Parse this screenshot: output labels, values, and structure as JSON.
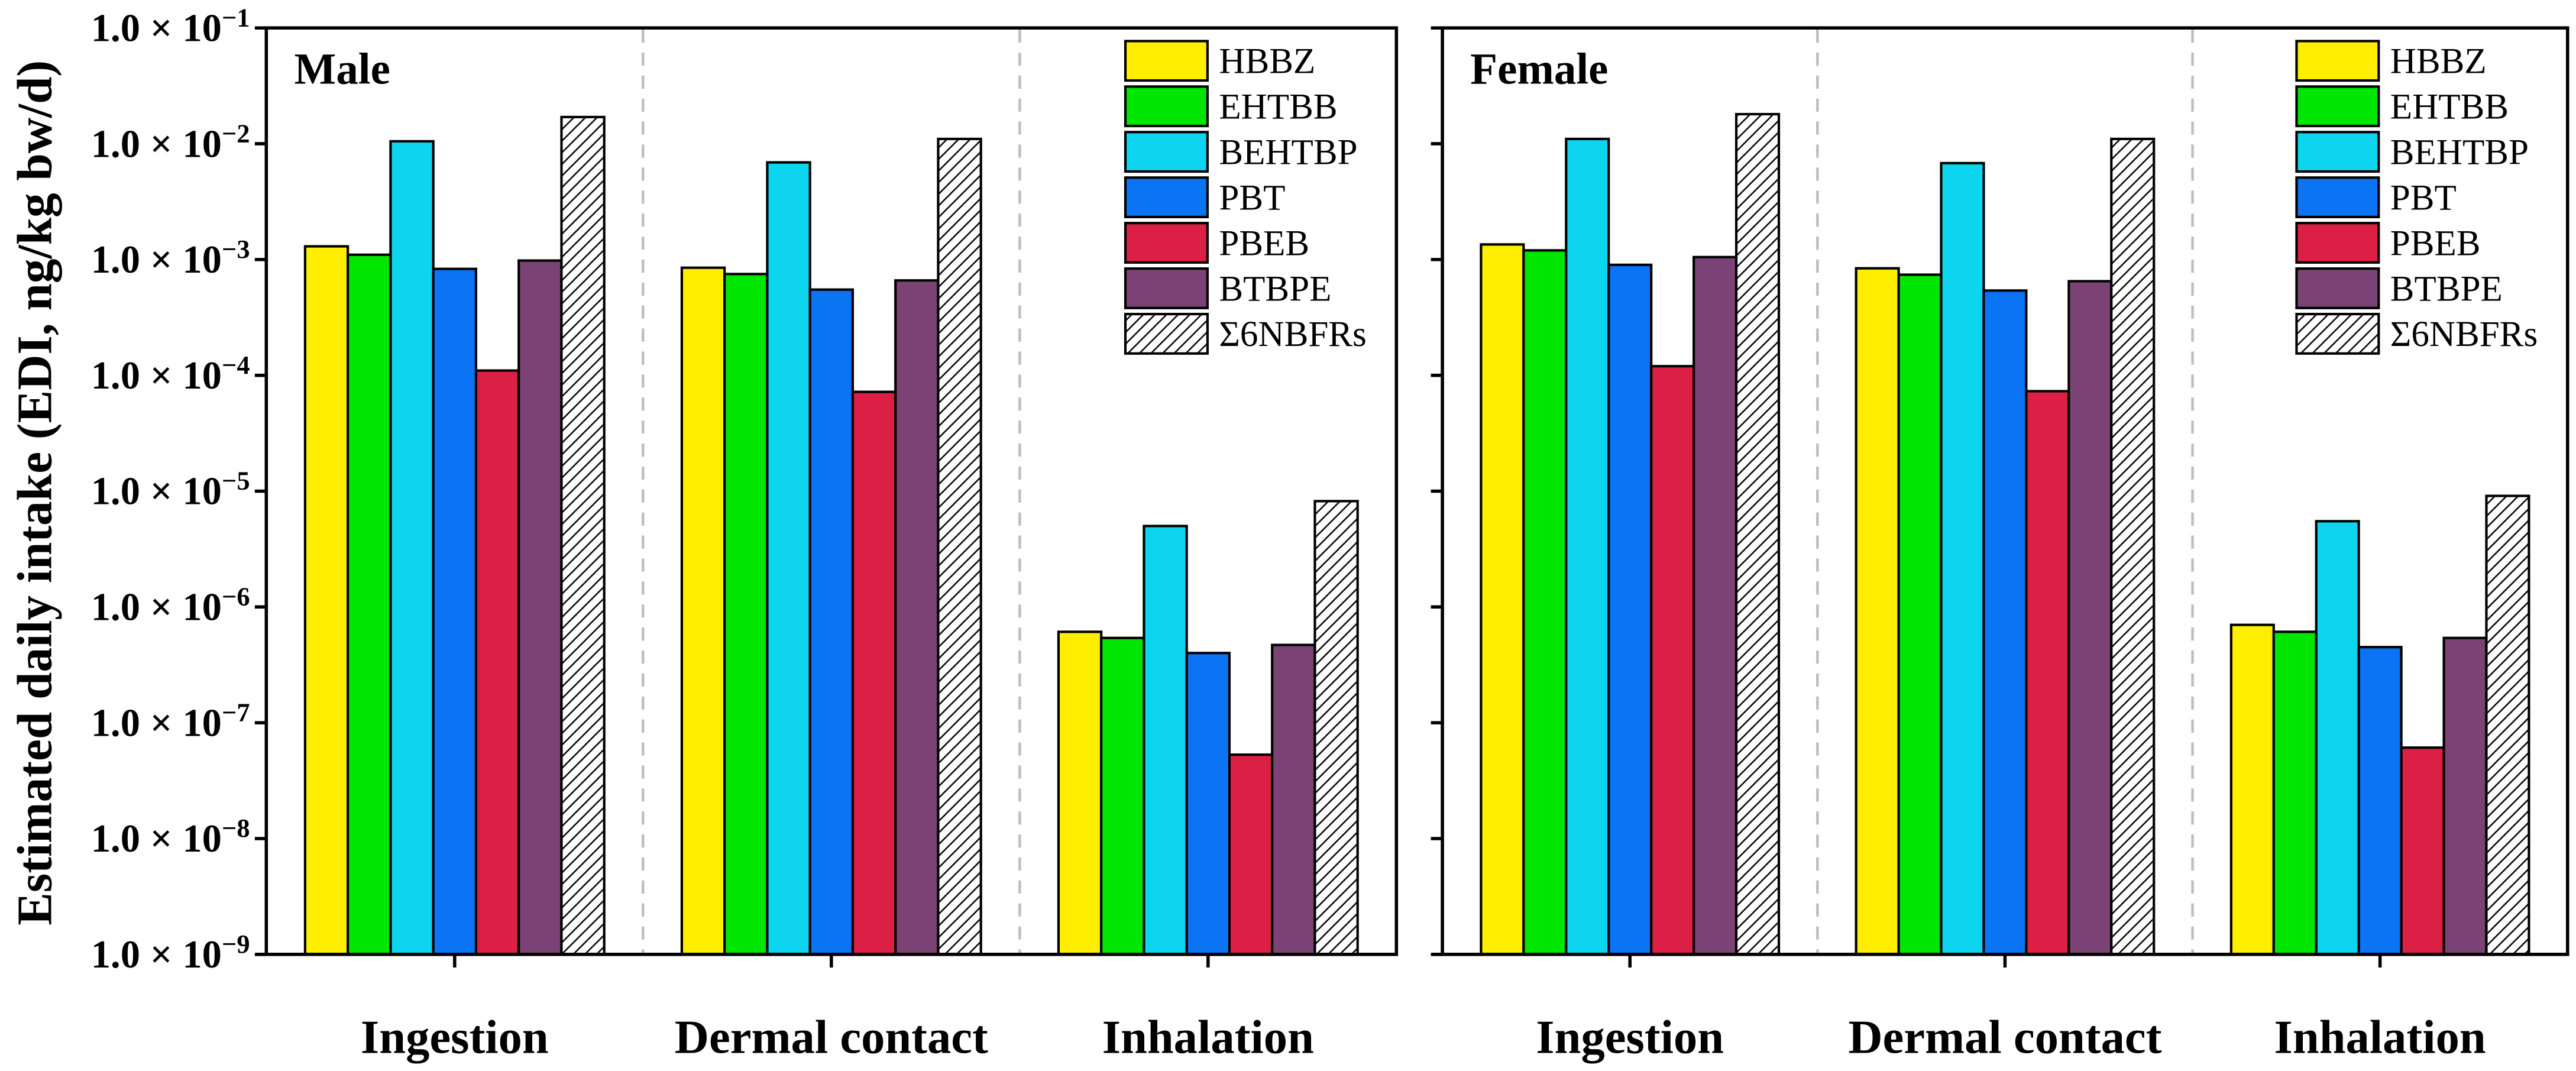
{
  "chart_data": [
    {
      "type": "bar",
      "title": "Male",
      "ylabel": "Estimated daily intake (EDI, ng/kg bw/d)",
      "y_log": true,
      "ylim": [
        1e-09,
        0.1
      ],
      "grid": false,
      "categories": [
        "Ingestion",
        "Dermal contact",
        "Inhalation"
      ],
      "y_ticks": [
        {
          "value": 0.1,
          "base": "1.0 × 10",
          "exp": "−1"
        },
        {
          "value": 0.01,
          "base": "1.0 × 10",
          "exp": "−2"
        },
        {
          "value": 0.001,
          "base": "1.0 × 10",
          "exp": "−3"
        },
        {
          "value": 0.0001,
          "base": "1.0 × 10",
          "exp": "−4"
        },
        {
          "value": 1e-05,
          "base": "1.0 × 10",
          "exp": "−5"
        },
        {
          "value": 1e-06,
          "base": "1.0 × 10",
          "exp": "−6"
        },
        {
          "value": 1e-07,
          "base": "1.0 × 10",
          "exp": "−7"
        },
        {
          "value": 1e-08,
          "base": "1.0 × 10",
          "exp": "−8"
        },
        {
          "value": 1e-09,
          "base": "1.0 × 10",
          "exp": "−9"
        }
      ],
      "series": [
        {
          "name": "HBBZ",
          "color": "#FFEE00",
          "values": [
            0.0013,
            0.00085,
            6.1e-07
          ]
        },
        {
          "name": "EHTBB",
          "color": "#00E600",
          "values": [
            0.0011,
            0.00075,
            5.4e-07
          ]
        },
        {
          "name": "BEHTBP",
          "color": "#0DD5EF",
          "values": [
            0.0105,
            0.0069,
            5e-06
          ]
        },
        {
          "name": "PBT",
          "color": "#0B74F4",
          "values": [
            0.00083,
            0.00055,
            4e-07
          ]
        },
        {
          "name": "PBEB",
          "color": "#DC2045",
          "values": [
            0.00011,
            7.2e-05,
            5.3e-08
          ]
        },
        {
          "name": "BTBPE",
          "color": "#7B4275",
          "values": [
            0.00098,
            0.00066,
            4.7e-07
          ]
        },
        {
          "name": "Σ6NBFRs",
          "color": "#FFFFFF",
          "hatch": true,
          "values": [
            0.017,
            0.011,
            8.2e-06
          ]
        }
      ]
    },
    {
      "type": "bar",
      "title": "Female",
      "y_log": true,
      "ylim": [
        1e-09,
        0.1
      ],
      "grid": false,
      "categories": [
        "Ingestion",
        "Dermal contact",
        "Inhalation"
      ],
      "y_tick_values": [
        0.1,
        0.01,
        0.001,
        0.0001,
        1e-05,
        1e-06,
        1e-07,
        1e-08,
        1e-09
      ],
      "series": [
        {
          "name": "HBBZ",
          "color": "#FFEE00",
          "values": [
            0.00135,
            0.00084,
            7e-07
          ]
        },
        {
          "name": "EHTBB",
          "color": "#00E600",
          "values": [
            0.0012,
            0.00074,
            6.1e-07
          ]
        },
        {
          "name": "BEHTBP",
          "color": "#0DD5EF",
          "values": [
            0.011,
            0.0068,
            5.5e-06
          ]
        },
        {
          "name": "PBT",
          "color": "#0B74F4",
          "values": [
            0.0009,
            0.00054,
            4.5e-07
          ]
        },
        {
          "name": "PBEB",
          "color": "#DC2045",
          "values": [
            0.00012,
            7.3e-05,
            6.1e-08
          ]
        },
        {
          "name": "BTBPE",
          "color": "#7B4275",
          "values": [
            0.00105,
            0.00065,
            5.4e-07
          ]
        },
        {
          "name": "Σ6NBFRs",
          "color": "#FFFFFF",
          "hatch": true,
          "values": [
            0.018,
            0.011,
            9.1e-06
          ]
        }
      ]
    }
  ]
}
